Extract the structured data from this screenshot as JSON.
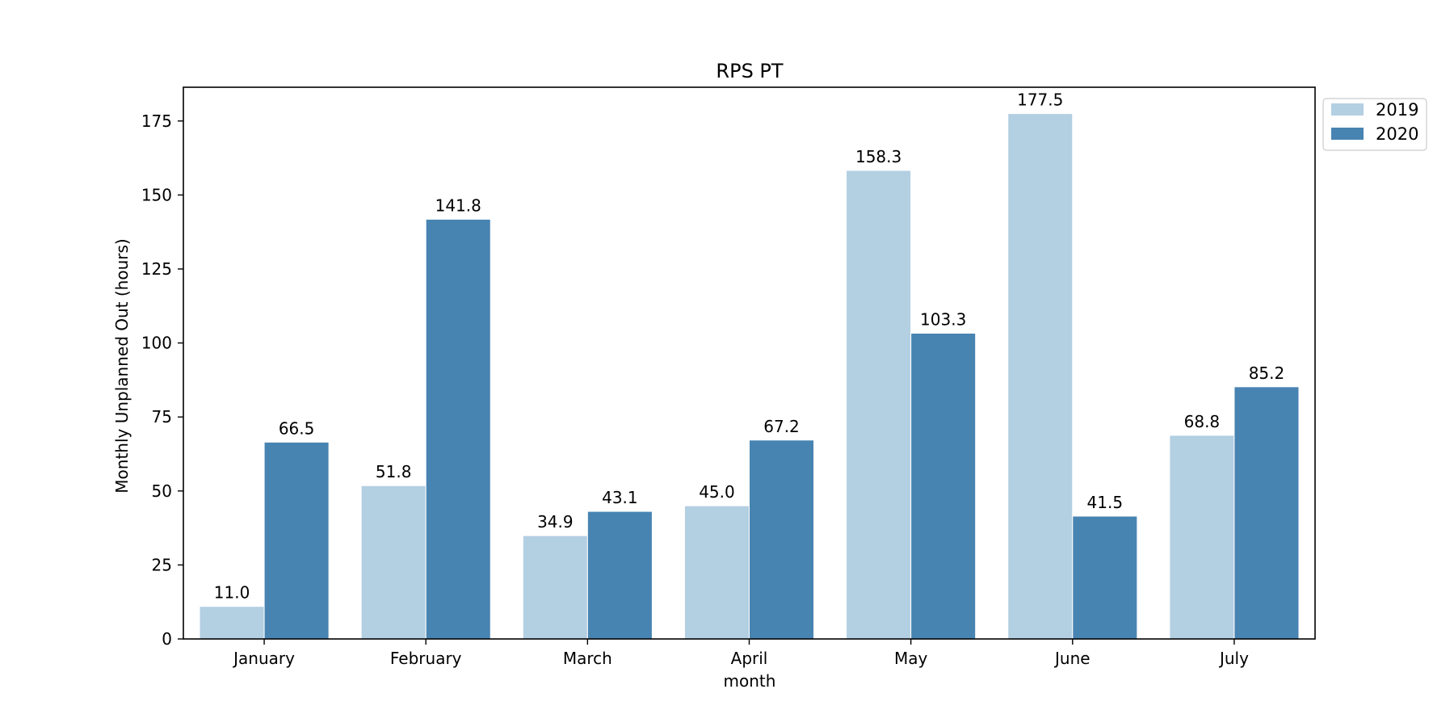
{
  "chart_data": {
    "type": "bar",
    "title": "RPS PT",
    "xlabel": "month",
    "ylabel": "Monthly Unplanned Out (hours)",
    "categories": [
      "January",
      "February",
      "March",
      "April",
      "May",
      "June",
      "July"
    ],
    "series": [
      {
        "name": "2019",
        "color": "#b3cfe2",
        "values": [
          11.0,
          51.8,
          34.9,
          45.0,
          158.3,
          177.5,
          68.8
        ]
      },
      {
        "name": "2020",
        "color": "#4884b2",
        "values": [
          66.5,
          141.8,
          43.1,
          67.2,
          103.3,
          41.5,
          85.2
        ]
      }
    ],
    "data_labels": [
      [
        "11.0",
        "51.8",
        "34.9",
        "45.0",
        "158.3",
        "177.5",
        "68.8"
      ],
      [
        "66.5",
        "141.8",
        "43.1",
        "67.2",
        "103.3",
        "41.5",
        "85.2"
      ]
    ],
    "ylim": [
      0,
      186.4
    ],
    "yticks": [
      0,
      25,
      50,
      75,
      100,
      125,
      150,
      175
    ],
    "ytick_labels": [
      "0",
      "25",
      "50",
      "75",
      "100",
      "125",
      "150",
      "175"
    ],
    "grid": false,
    "legend_position": "outside top-right"
  }
}
